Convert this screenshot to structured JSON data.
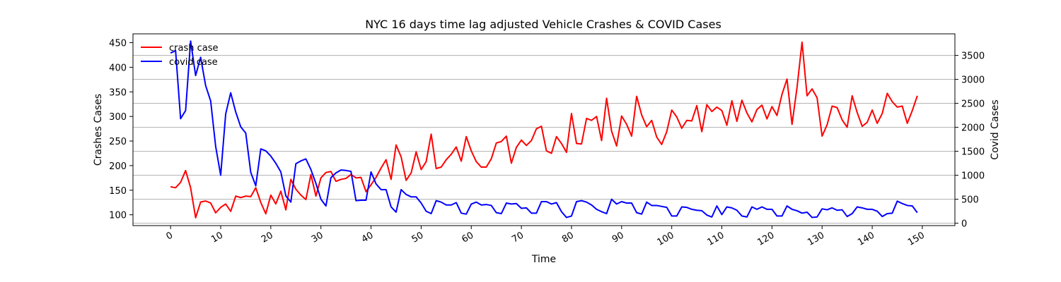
{
  "chart_data": {
    "type": "line",
    "title": "NYC 16 days time lag adjusted Vehicle Crashes & COVID Cases",
    "xlabel": "Time",
    "ylabel_left": "Crashes Cases",
    "ylabel_right": "Covid Cases",
    "xlim": [
      -7.5,
      156.5
    ],
    "ylim_left": [
      78,
      468
    ],
    "ylim_right": [
      -50,
      3950
    ],
    "xticks": [
      0,
      10,
      20,
      30,
      40,
      50,
      60,
      70,
      80,
      90,
      100,
      110,
      120,
      130,
      140,
      150
    ],
    "yticks_left": [
      100,
      150,
      200,
      250,
      300,
      350,
      400,
      450
    ],
    "yticks_right": [
      0,
      500,
      1000,
      1500,
      2000,
      2500,
      3000,
      3500
    ],
    "grid": "horizontal (right axis)",
    "legend": "top-left",
    "colors": {
      "crash": "#ff0000",
      "covid": "#0000ff"
    },
    "series": [
      {
        "name": "crash case",
        "axis": "left",
        "values": [
          157,
          155,
          166,
          190,
          155,
          94,
          126,
          128,
          124,
          104,
          115,
          122,
          107,
          138,
          135,
          138,
          137,
          155,
          125,
          102,
          140,
          122,
          148,
          110,
          172,
          152,
          140,
          131,
          182,
          138,
          175,
          186,
          188,
          168,
          172,
          174,
          182,
          175,
          176,
          147,
          161,
          176,
          195,
          212,
          172,
          242,
          218,
          170,
          185,
          228,
          192,
          208,
          264,
          194,
          197,
          212,
          223,
          238,
          209,
          259,
          230,
          208,
          197,
          197,
          214,
          246,
          249,
          260,
          205,
          237,
          252,
          241,
          251,
          275,
          280,
          230,
          225,
          259,
          245,
          227,
          306,
          245,
          244,
          296,
          292,
          300,
          251,
          337,
          270,
          240,
          301,
          284,
          260,
          341,
          303,
          279,
          292,
          258,
          243,
          269,
          313,
          299,
          276,
          292,
          291,
          322,
          269,
          324,
          310,
          319,
          312,
          282,
          332,
          290,
          333,
          307,
          289,
          314,
          323,
          295,
          320,
          302,
          345,
          376,
          284,
          359,
          451,
          342,
          356,
          338,
          260,
          283,
          321,
          318,
          293,
          278,
          342,
          308,
          280,
          288,
          313,
          286,
          306,
          347,
          330,
          319,
          321,
          286,
          312,
          342
        ]
      },
      {
        "name": "covid case",
        "axis": "right",
        "values": [
          3550,
          3600,
          2180,
          2350,
          3800,
          3080,
          3460,
          2870,
          2550,
          1600,
          1000,
          2280,
          2720,
          2320,
          2010,
          1880,
          1060,
          780,
          1550,
          1510,
          1400,
          1250,
          1070,
          570,
          440,
          1240,
          1300,
          1340,
          1120,
          830,
          500,
          360,
          950,
          1050,
          1110,
          1100,
          1080,
          470,
          480,
          480,
          1070,
          820,
          700,
          700,
          340,
          230,
          700,
          600,
          550,
          550,
          420,
          250,
          200,
          470,
          440,
          380,
          380,
          430,
          210,
          190,
          400,
          440,
          380,
          390,
          370,
          220,
          200,
          420,
          400,
          410,
          310,
          320,
          210,
          210,
          450,
          450,
          400,
          430,
          240,
          120,
          150,
          450,
          470,
          440,
          380,
          290,
          240,
          200,
          500,
          400,
          450,
          420,
          420,
          220,
          190,
          440,
          370,
          370,
          350,
          330,
          150,
          150,
          340,
          330,
          290,
          270,
          260,
          170,
          130,
          360,
          180,
          340,
          320,
          270,
          150,
          130,
          340,
          290,
          340,
          290,
          290,
          150,
          150,
          360,
          290,
          260,
          210,
          230,
          120,
          130,
          300,
          280,
          320,
          270,
          280,
          140,
          200,
          340,
          320,
          290,
          290,
          250,
          140,
          200,
          210,
          460,
          410,
          370,
          360,
          220
        ]
      }
    ]
  }
}
